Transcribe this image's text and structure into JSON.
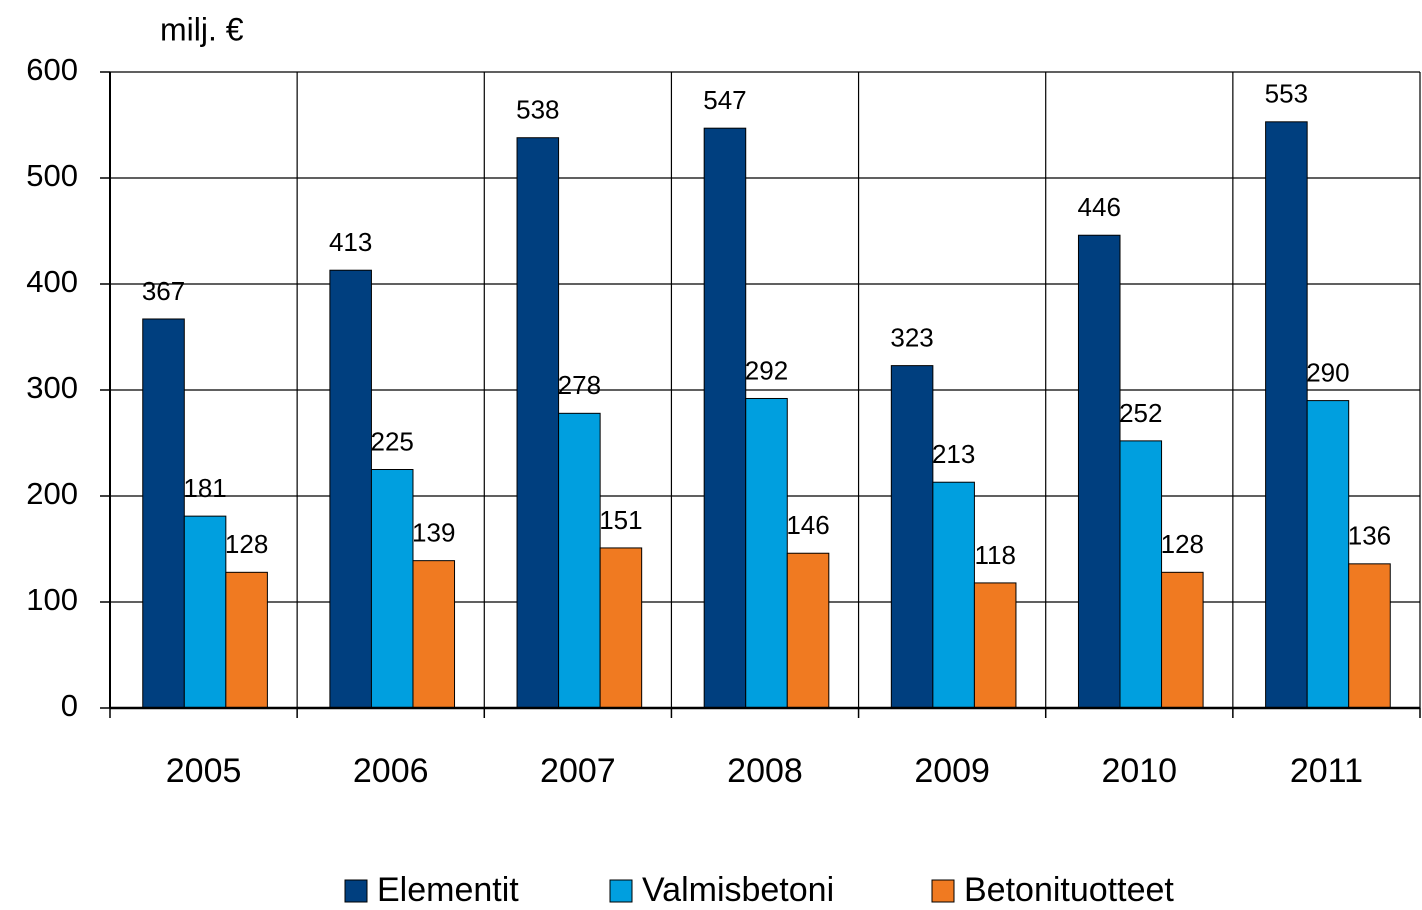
{
  "chart_data": {
    "type": "bar",
    "y_axis_label": "milj. €",
    "categories": [
      "2005",
      "2006",
      "2007",
      "2008",
      "2009",
      "2010",
      "2011"
    ],
    "series": [
      {
        "name": "Elementit",
        "color": "#003f7f",
        "values": [
          367,
          413,
          538,
          547,
          323,
          446,
          553
        ]
      },
      {
        "name": "Valmisbetoni",
        "color": "#009fdf",
        "values": [
          181,
          225,
          278,
          292,
          213,
          252,
          290
        ]
      },
      {
        "name": "Betonituotteet",
        "color": "#f07a21",
        "values": [
          128,
          139,
          151,
          146,
          118,
          128,
          136
        ]
      }
    ],
    "ylim": [
      0,
      600
    ],
    "yticks": [
      0,
      100,
      200,
      300,
      400,
      500,
      600
    ],
    "grid": true,
    "legend": "bottom"
  }
}
